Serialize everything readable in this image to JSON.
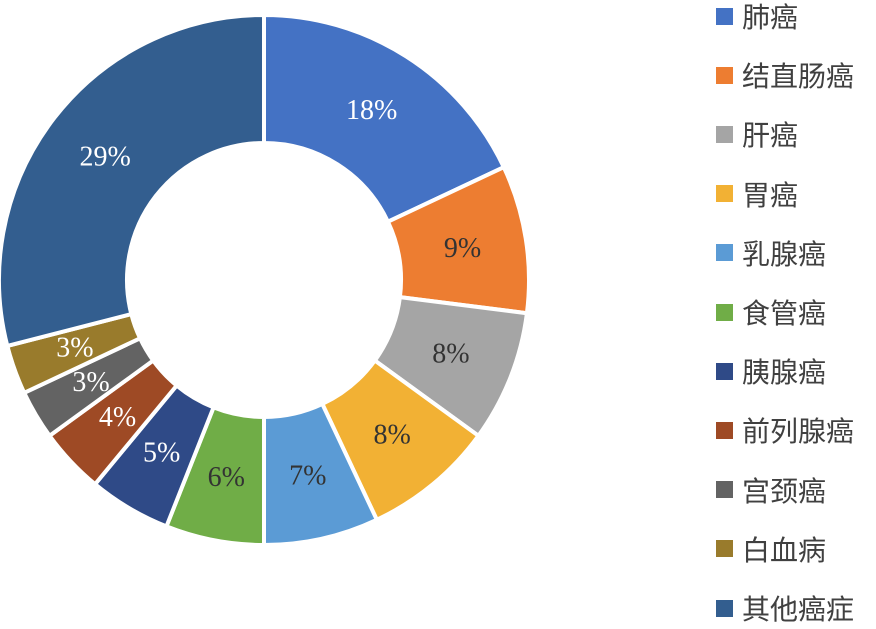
{
  "chart_data": {
    "type": "pie",
    "title": "",
    "donut": true,
    "legend_position": "right",
    "value_format": "percent",
    "slices": [
      {
        "label": "肺癌",
        "value": 18,
        "display": "18%",
        "color": "#4472C4",
        "label_color": "#ffffff"
      },
      {
        "label": "结直肠癌",
        "value": 9,
        "display": "9%",
        "color": "#ED7D31",
        "label_color": "#333333"
      },
      {
        "label": "肝癌",
        "value": 8,
        "display": "8%",
        "color": "#A5A5A5",
        "label_color": "#333333"
      },
      {
        "label": "胃癌",
        "value": 8,
        "display": "8%",
        "color": "#F2B134",
        "label_color": "#333333"
      },
      {
        "label": "乳腺癌",
        "value": 7,
        "display": "7%",
        "color": "#5B9BD5",
        "label_color": "#333333"
      },
      {
        "label": "食管癌",
        "value": 6,
        "display": "6%",
        "color": "#70AD47",
        "label_color": "#333333"
      },
      {
        "label": "胰腺癌",
        "value": 5,
        "display": "5%",
        "color": "#2F4A87",
        "label_color": "#ffffff"
      },
      {
        "label": "前列腺癌",
        "value": 4,
        "display": "4%",
        "color": "#9E4A25",
        "label_color": "#ffffff"
      },
      {
        "label": "宫颈癌",
        "value": 3,
        "display": "3%",
        "color": "#636363",
        "label_color": "#ffffff"
      },
      {
        "label": "白血病",
        "value": 3,
        "display": "3%",
        "color": "#997B2C",
        "label_color": "#ffffff"
      },
      {
        "label": "其他癌症",
        "value": 29,
        "display": "29%",
        "color": "#335E8F",
        "label_color": "#ffffff"
      }
    ]
  }
}
